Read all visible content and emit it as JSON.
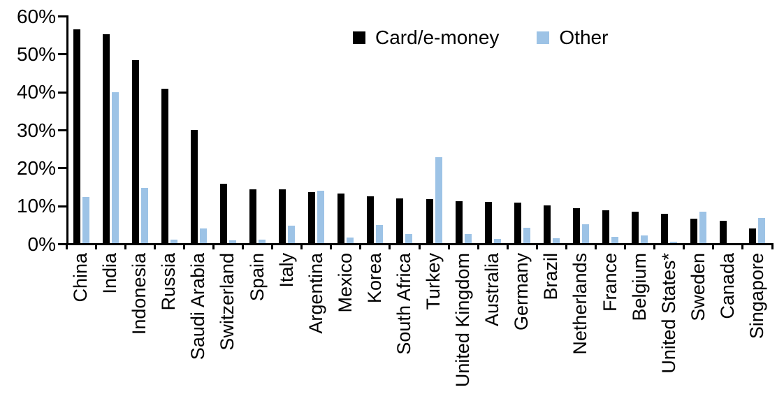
{
  "chart_data": {
    "type": "bar",
    "title": "",
    "xlabel": "",
    "ylabel": "",
    "ylim": [
      0,
      60
    ],
    "grid": false,
    "legend_position": "top-center",
    "y_ticks": [
      "0%",
      "10%",
      "20%",
      "30%",
      "40%",
      "50%",
      "60%"
    ],
    "categories": [
      "China",
      "India",
      "Indonesia",
      "Russia",
      "Saudi Arabia",
      "Switzerland",
      "Spain",
      "Italy",
      "Argentina",
      "Mexico",
      "Korea",
      "South Africa",
      "Turkey",
      "United Kingdom",
      "Australia",
      "Germany",
      "Brazil",
      "Netherlands",
      "France",
      "Belgium",
      "United States*",
      "Sweden",
      "Canada",
      "Singapore"
    ],
    "series": [
      {
        "name": "Card/e-money",
        "color": "#000000",
        "values": [
          56.3,
          55.0,
          48.2,
          40.6,
          29.9,
          15.6,
          14.2,
          14.1,
          13.5,
          13.0,
          12.3,
          11.8,
          11.6,
          11.1,
          10.9,
          10.7,
          10.0,
          9.2,
          8.7,
          8.2,
          7.8,
          6.5,
          5.9,
          3.9
        ]
      },
      {
        "name": "Other",
        "color": "#9DC3E6",
        "values": [
          12.2,
          39.7,
          14.6,
          1.0,
          3.9,
          0.8,
          1.0,
          4.6,
          13.8,
          1.4,
          4.7,
          2.4,
          22.6,
          2.4,
          1.1,
          4.0,
          1.2,
          4.9,
          1.6,
          2.1,
          0.3,
          8.2,
          0.0,
          6.7
        ]
      }
    ]
  }
}
